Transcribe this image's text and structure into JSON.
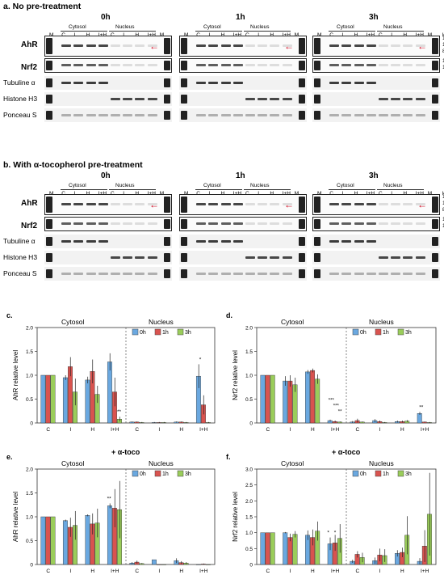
{
  "panel_a": {
    "title": "a. No pre-treatment",
    "times": [
      "0h",
      "1h",
      "3h"
    ],
    "cytosol": "Cytosol",
    "nucleus": "Nucleus",
    "lanes": [
      "M",
      "C",
      "I",
      "H",
      "I+H",
      "C",
      "I",
      "H",
      "I+H",
      "M"
    ],
    "kda": "kDa",
    "mw1": [
      "150",
      "100",
      "80"
    ],
    "mw2": [
      "150",
      "100"
    ],
    "rows": [
      "AhR",
      "Nrf2",
      "Tubuline α",
      "Histone H3",
      "Ponceau S"
    ]
  },
  "panel_b": {
    "title": "b. With α-tocopherol pre-treatment",
    "times": [
      "0h",
      "1h",
      "3h"
    ],
    "cytosol": "Cytosol",
    "nucleus": "Nucleus",
    "lanes": [
      "M",
      "C",
      "I",
      "H",
      "I+H",
      "C",
      "I",
      "H",
      "I+H",
      "M"
    ],
    "kda": "kDa",
    "mw1": [
      "150",
      "100",
      "80"
    ],
    "mw2": [
      "150",
      "100"
    ],
    "rows": [
      "AhR",
      "Nrf2",
      "Tubuline α",
      "Histone H3",
      "Ponceau S"
    ]
  },
  "colors": {
    "0h": "#6aa8e0",
    "1h": "#d9534f",
    "3h": "#9acd5a",
    "1h_light": "#e79a9a",
    "arrow": "#d0021b"
  },
  "chart_data": [
    {
      "panel": "c.",
      "type": "bar",
      "ylabel": "AhR relative level",
      "groups": [
        "Cytosol",
        "Nucleus"
      ],
      "categories": [
        "C",
        "I",
        "H",
        "I+H",
        "C",
        "I",
        "H",
        "I+H"
      ],
      "ylim": [
        0,
        2.0
      ],
      "yticks": [
        "0",
        "0.5",
        "1.0",
        "1.5",
        "2.0"
      ],
      "legend": [
        "0h",
        "1h",
        "3h"
      ],
      "series": [
        {
          "name": "0h",
          "values": [
            1.0,
            0.95,
            0.9,
            1.28,
            0.02,
            0.01,
            0.02,
            0.98
          ],
          "errors": [
            0,
            0.05,
            0.07,
            0.18,
            0.01,
            0.01,
            0.01,
            0.25
          ]
        },
        {
          "name": "1h",
          "values": [
            1.0,
            1.18,
            1.08,
            0.65,
            0.02,
            0.01,
            0.02,
            0.38
          ],
          "errors": [
            0,
            0.2,
            0.25,
            0.3,
            0.01,
            0.01,
            0.01,
            0.2
          ]
        },
        {
          "name": "3h",
          "values": [
            1.0,
            0.65,
            0.6,
            0.08,
            0.01,
            0.01,
            0.01,
            0.01
          ],
          "errors": [
            0,
            0.28,
            0.18,
            0.05,
            0.01,
            0.01,
            0.01,
            0.01
          ]
        }
      ],
      "annotations": [
        "**",
        "*"
      ]
    },
    {
      "panel": "d.",
      "type": "bar",
      "ylabel": "Nrf2 relative level",
      "groups": [
        "Cytosol",
        "Nucleus"
      ],
      "categories": [
        "C",
        "I",
        "H",
        "I+H",
        "C",
        "I",
        "H",
        "I+H"
      ],
      "ylim": [
        0,
        2.0
      ],
      "yticks": [
        "0",
        "0.5",
        "1.0",
        "1.5",
        "2.0"
      ],
      "legend": [
        "0h",
        "1h",
        "3h"
      ],
      "series": [
        {
          "name": "0h",
          "values": [
            1.0,
            0.88,
            1.07,
            0.05,
            0.02,
            0.05,
            0.03,
            0.2
          ],
          "errors": [
            0,
            0.1,
            0.04,
            0.02,
            0.02,
            0.03,
            0.02,
            0.03
          ]
        },
        {
          "name": "1h",
          "values": [
            1.0,
            0.88,
            1.1,
            0.03,
            0.05,
            0.03,
            0.03,
            0.02
          ],
          "errors": [
            0,
            0.12,
            0.04,
            0.02,
            0.04,
            0.02,
            0.02,
            0.01
          ]
        },
        {
          "name": "3h",
          "values": [
            1.0,
            0.8,
            0.92,
            0.02,
            0.02,
            0.01,
            0.04,
            0.01
          ],
          "errors": [
            0,
            0.15,
            0.1,
            0.01,
            0.01,
            0.01,
            0.02,
            0.01
          ]
        }
      ],
      "annotations": [
        "***",
        "***",
        "**",
        "**"
      ]
    },
    {
      "panel": "e.",
      "type": "bar",
      "title": "+ α-toco",
      "ylabel": "AhR relative level",
      "groups": [
        "Cytosol",
        "Nucleus"
      ],
      "categories": [
        "C",
        "I",
        "H",
        "I+H",
        "C",
        "I",
        "H",
        "I+H"
      ],
      "ylim": [
        0,
        2.0
      ],
      "yticks": [
        "0",
        "0.5",
        "1.0",
        "1.5",
        "2.0"
      ],
      "legend": [
        "0h",
        "1h",
        "3h"
      ],
      "series": [
        {
          "name": "0h",
          "values": [
            1.0,
            0.92,
            1.03,
            1.23,
            0.03,
            0.1,
            0.08,
            0.0
          ],
          "errors": [
            0,
            0.02,
            0.02,
            0.05,
            0.02,
            0.0,
            0.05,
            0.0
          ]
        },
        {
          "name": "1h",
          "values": [
            1.0,
            0.78,
            0.85,
            1.18,
            0.05,
            0.0,
            0.04,
            0.01
          ],
          "errors": [
            0,
            0.2,
            0.22,
            0.4,
            0.03,
            0.0,
            0.03,
            0.01
          ]
        },
        {
          "name": "3h",
          "values": [
            1.0,
            0.82,
            0.87,
            1.15,
            0.02,
            0.0,
            0.03,
            0.0
          ],
          "errors": [
            0,
            0.3,
            0.3,
            0.6,
            0.01,
            0.0,
            0.02,
            0.0
          ]
        }
      ],
      "annotations": [
        "**"
      ]
    },
    {
      "panel": "f.",
      "type": "bar",
      "title": "+ α-toco",
      "ylabel": "Nrf2 relative level",
      "groups": [
        "Cytosol",
        "Nucleus"
      ],
      "categories": [
        "C",
        "I",
        "H",
        "I+H",
        "C",
        "I",
        "H",
        "I+H"
      ],
      "ylim": [
        0,
        3.0
      ],
      "yticks": [
        "0",
        "0.5",
        "1.0",
        "1.5",
        "2.0",
        "2.5",
        "3.0"
      ],
      "legend": [
        "0h",
        "1h",
        "3h"
      ],
      "series": [
        {
          "name": "0h",
          "values": [
            1.0,
            1.0,
            0.92,
            0.65,
            0.1,
            0.12,
            0.35,
            0.1
          ],
          "errors": [
            0,
            0.02,
            0.15,
            0.2,
            0.05,
            0.1,
            0.1,
            0.1
          ]
        },
        {
          "name": "1h",
          "values": [
            1.0,
            0.85,
            0.85,
            0.68,
            0.32,
            0.3,
            0.38,
            0.58
          ],
          "errors": [
            0,
            0.12,
            0.25,
            0.25,
            0.1,
            0.2,
            0.15,
            0.5
          ]
        },
        {
          "name": "3h",
          "values": [
            1.0,
            0.95,
            1.05,
            0.82,
            0.22,
            0.28,
            0.92,
            1.58
          ],
          "errors": [
            0,
            0.1,
            0.3,
            0.45,
            0.15,
            0.2,
            0.6,
            1.3
          ]
        }
      ],
      "annotations": [
        "*",
        "*"
      ]
    }
  ]
}
